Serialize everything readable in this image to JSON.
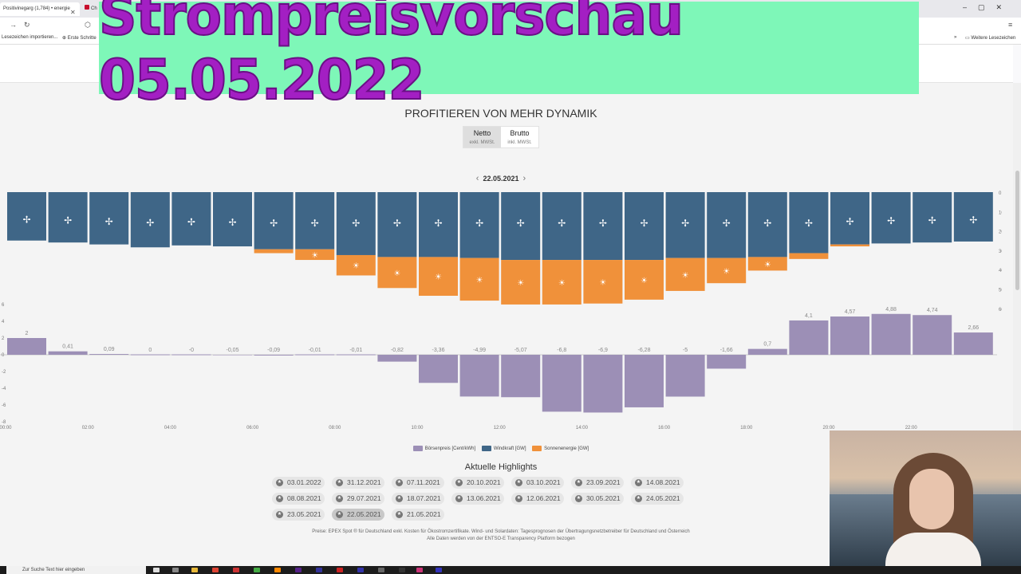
{
  "browser": {
    "tab1_title": "Positivinegarg (1,784) • energie",
    "tab2_title": "Ch",
    "bookmarks": [
      "Lesezeichen importieren...",
      "Erste Schritte"
    ],
    "bookmarks_right": "Weitere Lesezeichen"
  },
  "banner": {
    "title": "Strompreisvorschau 05.05.2022"
  },
  "page": {
    "headline": "PROFITIEREN VON MEHR DYNAMIK",
    "toggle": [
      {
        "label": "Netto",
        "sub": "exkl. MWSt.",
        "active": true
      },
      {
        "label": "Brutto",
        "sub": "inkl. MWSt.",
        "active": false
      }
    ],
    "date": "22.05.2021"
  },
  "chart_data": {
    "type": "bar",
    "hours": [
      "00",
      "01",
      "02",
      "03",
      "04",
      "05",
      "06",
      "07",
      "08",
      "09",
      "10",
      "11",
      "12",
      "13",
      "14",
      "15",
      "16",
      "17",
      "18",
      "19",
      "20",
      "21",
      "22",
      "23"
    ],
    "x_tick_labels": [
      "00:00",
      "02:00",
      "04:00",
      "06:00",
      "08:00",
      "10:00",
      "12:00",
      "14:00",
      "16:00",
      "18:00",
      "20:00",
      "22:00"
    ],
    "series": [
      {
        "name": "Börsenpreis [Cent/kWh]",
        "color": "#9c8fb6",
        "values": [
          2,
          0.41,
          0.09,
          0,
          -0.02,
          -0.05,
          -0.09,
          -0.01,
          -0.01,
          -0.82,
          -3.36,
          -4.99,
          -5.07,
          -6.8,
          -6.9,
          -6.28,
          -5,
          -1.66,
          0.7,
          4.1,
          4.57,
          4.88,
          4.74,
          2.66
        ],
        "labels": [
          "2",
          "0,41",
          "0,09",
          "0",
          "-0",
          "-0,05",
          "-0,09",
          "-0,01",
          "-0,01",
          "-0,82",
          "-3,36",
          "-4,99",
          "-5,07",
          "-6,8",
          "-6,9",
          "-6,28",
          "-5",
          "-1,66",
          "0,7",
          "4,1",
          "4,57",
          "4,88",
          "4,74",
          "2,66"
        ]
      },
      {
        "name": "Windkraft [GW]",
        "color": "#3f6687",
        "values": [
          25,
          26,
          27,
          28.5,
          27.5,
          28,
          29.5,
          29.5,
          32.5,
          33.5,
          33.5,
          34,
          35,
          35,
          35,
          35,
          34,
          34,
          33.5,
          31.5,
          27,
          26.5,
          26,
          25.5
        ]
      },
      {
        "name": "Sonnenenergie [GW]",
        "color": "#f0913a",
        "values": [
          0,
          0,
          0,
          0,
          0,
          0,
          2,
          5.5,
          10.5,
          16,
          20,
          22,
          23,
          23,
          22.5,
          20.5,
          17,
          13,
          7,
          3,
          1,
          0,
          0,
          0
        ]
      }
    ],
    "right_axis_ticks": [
      "0",
      "10",
      "20",
      "30",
      "40",
      "50",
      "60"
    ],
    "left_axis_ticks": [
      "6",
      "4",
      "2",
      "0",
      "-2",
      "-4",
      "-6",
      "-8"
    ],
    "top_ylim": [
      0,
      60
    ],
    "bottom_ylim": [
      -8,
      6
    ]
  },
  "highlights": {
    "title": "Aktuelle Highlights",
    "dates": [
      "03.01.2022",
      "31.12.2021",
      "07.11.2021",
      "20.10.2021",
      "03.10.2021",
      "23.09.2021",
      "14.08.2021",
      "08.08.2021",
      "29.07.2021",
      "18.07.2021",
      "13.06.2021",
      "12.06.2021",
      "30.05.2021",
      "24.05.2021",
      "23.05.2021",
      "22.05.2021",
      "21.05.2021"
    ],
    "active": "22.05.2021"
  },
  "footnote": {
    "line1": "Preise: EPEX Spot ® für Deutschland exkl. Kosten für Ökostromzertifikate. Wind- und Solardaten: Tagesprognosen der Übertragungsnetzbetreiber für Deutschland und Österreich",
    "line2": "Alle Daten werden von der ENTSO-E Transparency Platform bezogen"
  },
  "taskbar": {
    "search_placeholder": "Zur Suche Text hier eingeben"
  }
}
